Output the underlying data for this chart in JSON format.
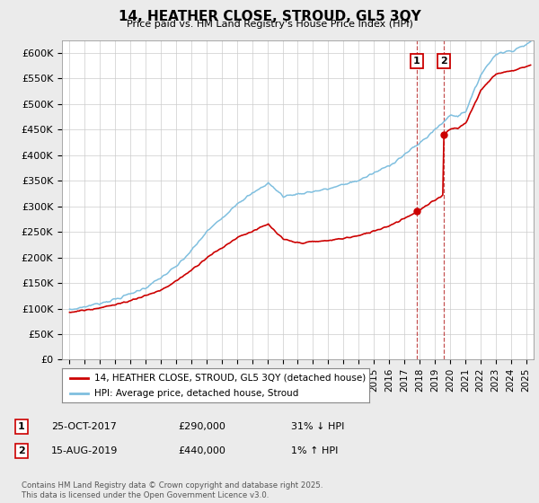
{
  "title": "14, HEATHER CLOSE, STROUD, GL5 3QY",
  "subtitle": "Price paid vs. HM Land Registry's House Price Index (HPI)",
  "ylim": [
    0,
    625000
  ],
  "yticks": [
    0,
    50000,
    100000,
    150000,
    200000,
    250000,
    300000,
    350000,
    400000,
    450000,
    500000,
    550000,
    600000
  ],
  "xlim_start": 1994.5,
  "xlim_end": 2025.5,
  "background_color": "#ebebeb",
  "plot_bg_color": "#ffffff",
  "hpi_color": "#7fbfdf",
  "price_color": "#cc0000",
  "grid_color": "#cccccc",
  "legend_label_price": "14, HEATHER CLOSE, STROUD, GL5 3QY (detached house)",
  "legend_label_hpi": "HPI: Average price, detached house, Stroud",
  "annotation1_num": "1",
  "annotation1_date": "25-OCT-2017",
  "annotation1_price": "£290,000",
  "annotation1_hpi": "31% ↓ HPI",
  "annotation1_year": 2017.82,
  "annotation1_value": 290000,
  "annotation2_num": "2",
  "annotation2_date": "15-AUG-2019",
  "annotation2_price": "£440,000",
  "annotation2_hpi": "1% ↑ HPI",
  "annotation2_year": 2019.62,
  "annotation2_value": 440000,
  "footer": "Contains HM Land Registry data © Crown copyright and database right 2025.\nThis data is licensed under the Open Government Licence v3.0."
}
